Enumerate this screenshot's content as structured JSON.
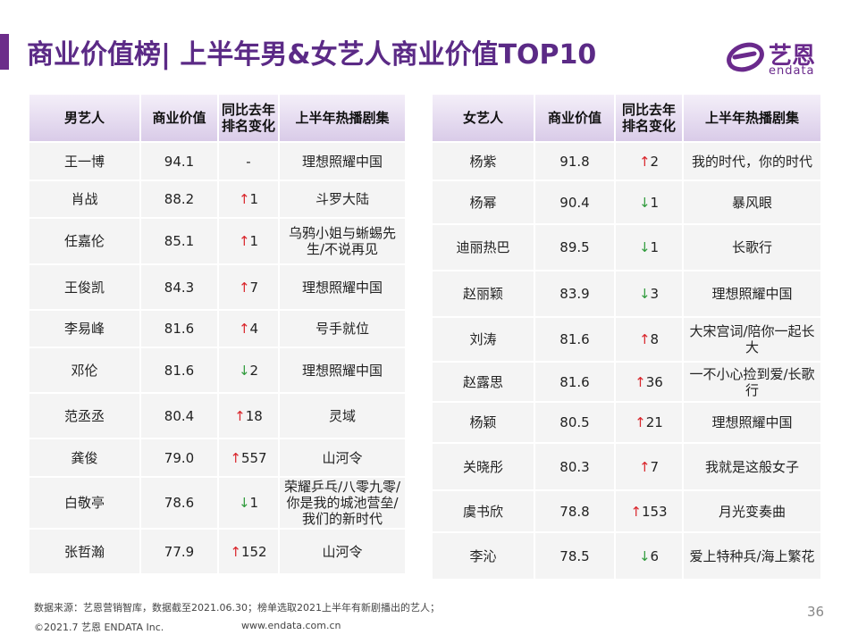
{
  "title": "商业价值榜| 上半年男&女艺人商业价值TOP10",
  "logo": {
    "cn": "艺恩",
    "en": "endata"
  },
  "colors": {
    "accent": "#6c2d8a",
    "up": "#d9262c",
    "down": "#2f9a3b"
  },
  "male": {
    "headers": {
      "name": "男艺人",
      "value": "商业价值",
      "change": "同比去年排名变化",
      "drama": "上半年热播剧集"
    },
    "rows": [
      {
        "name": "王一博",
        "value": "94.1",
        "dir": "",
        "arrow": "",
        "num": "-",
        "drama": "理想照耀中国"
      },
      {
        "name": "肖战",
        "value": "88.2",
        "dir": "up",
        "arrow": "↑",
        "num": "1",
        "drama": "斗罗大陆"
      },
      {
        "name": "任嘉伦",
        "value": "85.1",
        "dir": "up",
        "arrow": "↑",
        "num": "1",
        "drama": "乌鸦小姐与蜥蜴先生/不说再见"
      },
      {
        "name": "王俊凯",
        "value": "84.3",
        "dir": "up",
        "arrow": "↑",
        "num": "7",
        "drama": "理想照耀中国"
      },
      {
        "name": "李易峰",
        "value": "81.6",
        "dir": "up",
        "arrow": "↑",
        "num": "4",
        "drama": "号手就位"
      },
      {
        "name": "邓伦",
        "value": "81.6",
        "dir": "down",
        "arrow": "↓",
        "num": "2",
        "drama": "理想照耀中国"
      },
      {
        "name": "范丞丞",
        "value": "80.4",
        "dir": "up",
        "arrow": "↑",
        "num": "18",
        "drama": "灵域"
      },
      {
        "name": "龚俊",
        "value": "79.0",
        "dir": "up",
        "arrow": "↑",
        "num": "557",
        "drama": "山河令"
      },
      {
        "name": "白敬亭",
        "value": "78.6",
        "dir": "down",
        "arrow": "↓",
        "num": "1",
        "drama": "荣耀乒乓/八零九零/你是我的城池营垒/我们的新时代"
      },
      {
        "name": "张哲瀚",
        "value": "77.9",
        "dir": "up",
        "arrow": "↑",
        "num": "152",
        "drama": "山河令"
      }
    ]
  },
  "female": {
    "headers": {
      "name": "女艺人",
      "value": "商业价值",
      "change": "同比去年排名变化",
      "drama": "上半年热播剧集"
    },
    "rows": [
      {
        "name": "杨紫",
        "value": "91.8",
        "dir": "up",
        "arrow": "↑",
        "num": "2",
        "drama": "我的时代，你的时代"
      },
      {
        "name": "杨幂",
        "value": "90.4",
        "dir": "down",
        "arrow": "↓",
        "num": "1",
        "drama": "暴风眼"
      },
      {
        "name": "迪丽热巴",
        "value": "89.5",
        "dir": "down",
        "arrow": "↓",
        "num": "1",
        "drama": "长歌行"
      },
      {
        "name": "赵丽颖",
        "value": "83.9",
        "dir": "down",
        "arrow": "↓",
        "num": "3",
        "drama": "理想照耀中国"
      },
      {
        "name": "刘涛",
        "value": "81.6",
        "dir": "up",
        "arrow": "↑",
        "num": "8",
        "drama": "大宋宫词/陪你一起长大"
      },
      {
        "name": "赵露思",
        "value": "81.6",
        "dir": "up",
        "arrow": "↑",
        "num": "36",
        "drama": "一不小心捡到爱/长歌行"
      },
      {
        "name": "杨颖",
        "value": "80.5",
        "dir": "up",
        "arrow": "↑",
        "num": "21",
        "drama": "理想照耀中国"
      },
      {
        "name": "关晓彤",
        "value": "80.3",
        "dir": "up",
        "arrow": "↑",
        "num": "7",
        "drama": "我就是这般女子"
      },
      {
        "name": "虞书欣",
        "value": "78.8",
        "dir": "up",
        "arrow": "↑",
        "num": "153",
        "drama": "月光变奏曲"
      },
      {
        "name": "李沁",
        "value": "78.5",
        "dir": "down",
        "arrow": "↓",
        "num": "6",
        "drama": "爱上特种兵/海上繁花"
      }
    ]
  },
  "footer": {
    "source": "数据来源：艺恩营销智库，数据截至2021.06.30；榜单选取2021上半年有新剧播出的艺人；",
    "copyright": "©2021.7 艺恩 ENDATA Inc.",
    "website": "www.endata.com.cn",
    "page": "36"
  }
}
